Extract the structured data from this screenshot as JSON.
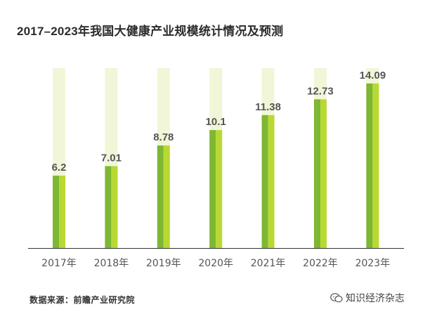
{
  "title": "2017–2023年我国大健康产业规模统计情况及预测",
  "source_text": "数据来源：前瞻产业研究院",
  "watermark": {
    "text": "知识经济杂志",
    "icon": "chat-bubble-icon"
  },
  "colors": {
    "background_bar": "#f1f6d8",
    "bar_dark": "#7db733",
    "bar_light": "#b8d933",
    "value_text": "#555555",
    "axis": "#333333",
    "tick_text": "#555555"
  },
  "chart_data": {
    "type": "bar",
    "title": "2017–2023年我国大健康产业规模统计情况及预测",
    "categories": [
      "2017年",
      "2018年",
      "2019年",
      "2020年",
      "2021年",
      "2022年",
      "2023年"
    ],
    "values": [
      6.2,
      7.01,
      8.78,
      10.1,
      11.38,
      12.73,
      14.09
    ],
    "value_labels": [
      "6.2",
      "7.01",
      "8.78",
      "10.1",
      "11.38",
      "12.73",
      "14.09"
    ],
    "xlabel": "",
    "ylabel": "",
    "ylim": [
      0,
      15.4
    ],
    "grid": false,
    "legend": "none"
  }
}
